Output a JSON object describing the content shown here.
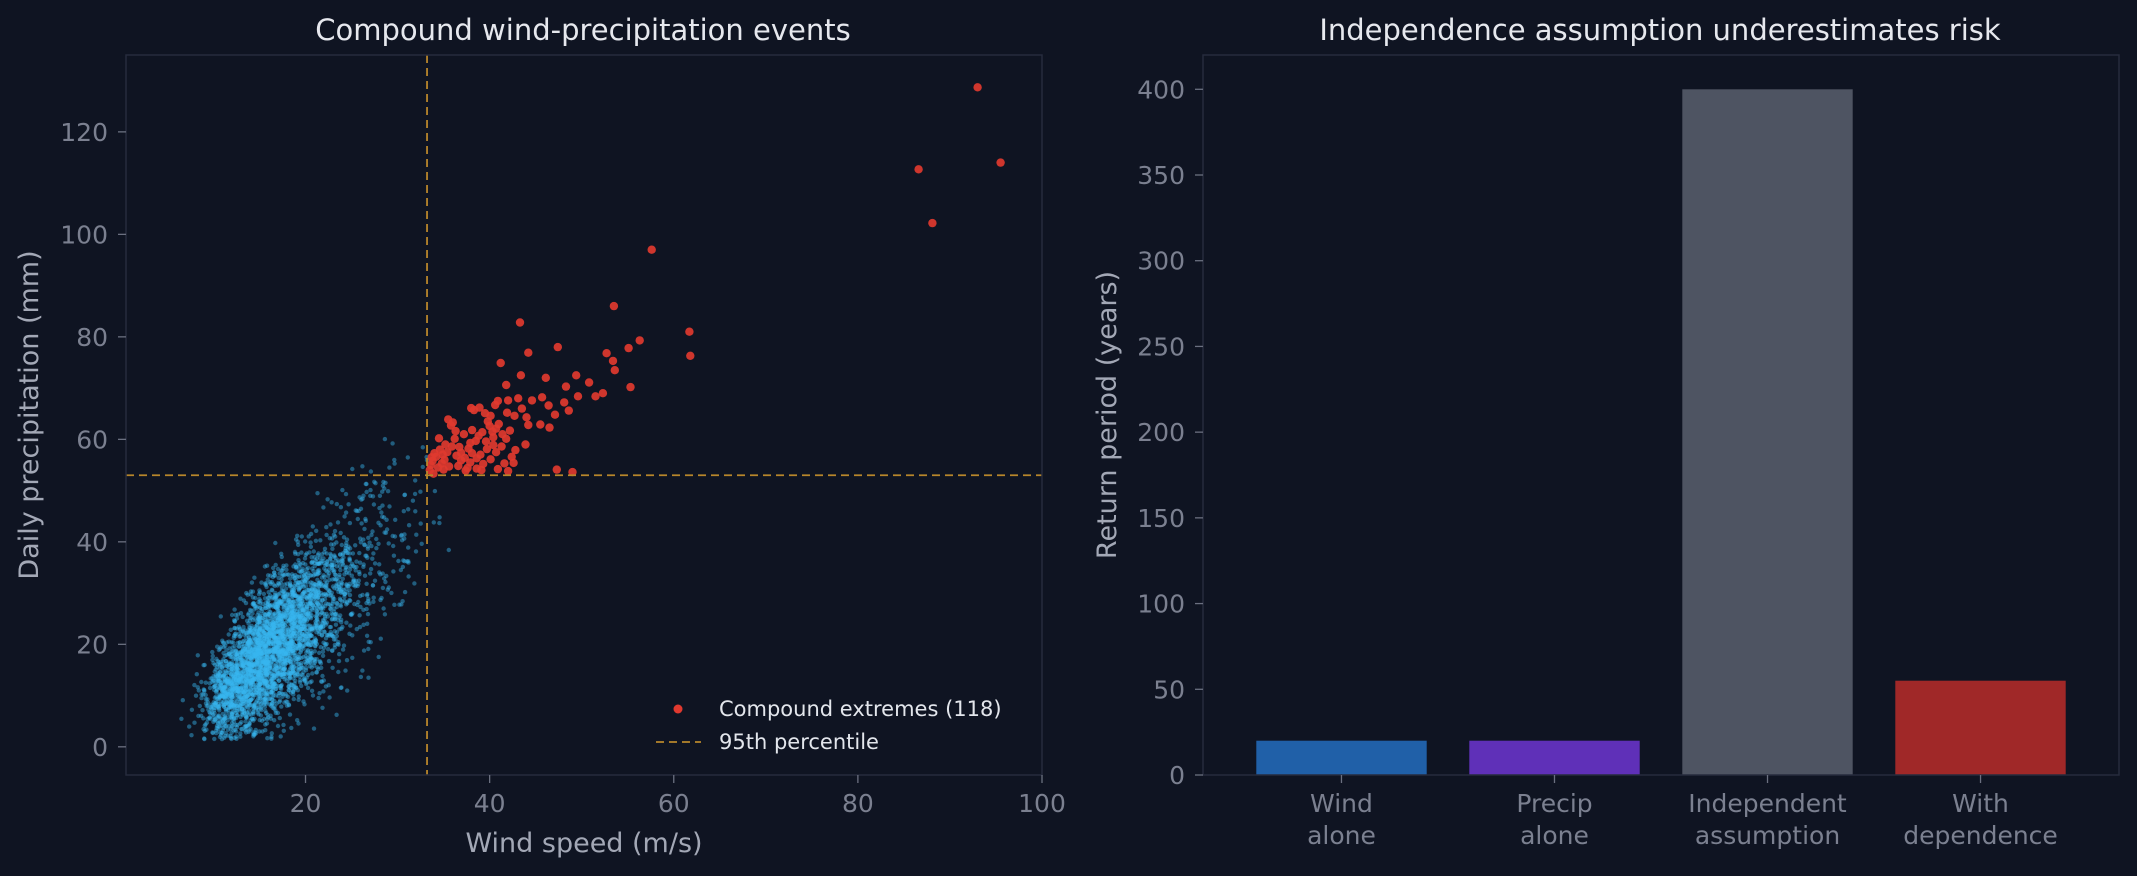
{
  "chart_data": [
    {
      "type": "scatter",
      "title": "Compound wind-precipitation events",
      "xlabel": "Wind speed (m/s)",
      "ylabel": "Daily precipitation (mm)",
      "xlim": [
        0.5,
        100
      ],
      "ylim": [
        -5.5,
        135
      ],
      "xticks": [
        20,
        40,
        60,
        80,
        100
      ],
      "yticks": [
        0,
        20,
        40,
        60,
        80,
        100,
        120
      ],
      "grid": false,
      "legend_position": "lower-right",
      "thresholds": {
        "wind": 33.2,
        "precip": 53
      },
      "colors": {
        "background": "#0f1422",
        "non_compound": "#38b6f0",
        "compound": "#e0392f",
        "threshold": "#b8862b"
      },
      "background_cloud": {
        "n": 3400,
        "seed": 7,
        "wind_median": 16.5,
        "wind_log_sd": 0.27,
        "precip_slope": 1.65,
        "precip_offset": -8,
        "precip_noise_sd": 6.5,
        "note_excluded": "points in the compound-extreme quadrant are not part of this cloud"
      },
      "series": [
        {
          "name": "Compound extremes (118)",
          "marker": "circle",
          "points": [
            [
              93.0,
              128.7
            ],
            [
              95.5,
              114.0
            ],
            [
              86.6,
              112.7
            ],
            [
              88.1,
              102.2
            ],
            [
              57.6,
              97.0
            ],
            [
              61.7,
              81.0
            ],
            [
              61.8,
              76.3
            ],
            [
              56.3,
              79.3
            ],
            [
              55.1,
              77.8
            ],
            [
              53.5,
              86.0
            ],
            [
              43.3,
              82.8
            ],
            [
              47.4,
              78.0
            ],
            [
              44.2,
              76.9
            ],
            [
              41.2,
              74.9
            ],
            [
              52.7,
              76.8
            ],
            [
              53.4,
              75.3
            ],
            [
              53.6,
              73.5
            ],
            [
              55.3,
              70.2
            ],
            [
              52.3,
              69.0
            ],
            [
              50.8,
              71.1
            ],
            [
              51.5,
              68.4
            ],
            [
              49.6,
              68.4
            ],
            [
              49.4,
              72.5
            ],
            [
              48.3,
              70.3
            ],
            [
              46.1,
              72.0
            ],
            [
              43.4,
              72.5
            ],
            [
              45.7,
              68.2
            ],
            [
              48.1,
              67.2
            ],
            [
              48.6,
              65.6
            ],
            [
              47.1,
              64.8
            ],
            [
              46.4,
              66.6
            ],
            [
              44.6,
              67.6
            ],
            [
              43.1,
              68.0
            ],
            [
              42.0,
              67.6
            ],
            [
              40.9,
              67.5
            ],
            [
              41.9,
              65.2
            ],
            [
              42.7,
              64.6
            ],
            [
              40.1,
              64.6
            ],
            [
              39.5,
              65.1
            ],
            [
              38.3,
              65.7
            ],
            [
              38.0,
              66.1
            ],
            [
              38.9,
              66.2
            ],
            [
              40.6,
              66.7
            ],
            [
              43.5,
              66.0
            ],
            [
              46.5,
              62.3
            ],
            [
              44.2,
              62.8
            ],
            [
              42.2,
              61.7
            ],
            [
              41.8,
              60.1
            ],
            [
              41.3,
              58.6
            ],
            [
              40.4,
              60.4
            ],
            [
              40.0,
              62.6
            ],
            [
              39.2,
              61.4
            ],
            [
              38.5,
              59.7
            ],
            [
              37.2,
              61.0
            ],
            [
              36.3,
              61.6
            ],
            [
              35.8,
              62.7
            ],
            [
              35.5,
              63.9
            ],
            [
              36.0,
              63.3
            ],
            [
              37.7,
              58.2
            ],
            [
              39.7,
              58.1
            ],
            [
              40.7,
              57.5
            ],
            [
              42.4,
              56.6
            ],
            [
              41.6,
              55.3
            ],
            [
              40.1,
              56.1
            ],
            [
              38.6,
              56.3
            ],
            [
              37.3,
              56.4
            ],
            [
              36.4,
              56.8
            ],
            [
              35.4,
              57.5
            ],
            [
              34.6,
              58.0
            ],
            [
              34.0,
              57.3
            ],
            [
              33.8,
              55.8
            ],
            [
              34.8,
              55.3
            ],
            [
              35.6,
              54.7
            ],
            [
              36.6,
              54.8
            ],
            [
              37.6,
              54.4
            ],
            [
              38.6,
              54.3
            ],
            [
              39.3,
              55.2
            ],
            [
              33.5,
              54.0
            ],
            [
              33.9,
              53.3
            ],
            [
              34.4,
              54.5
            ],
            [
              35.1,
              56.0
            ],
            [
              36.9,
              55.9
            ],
            [
              38.1,
              57.3
            ],
            [
              39.0,
              57.0
            ],
            [
              37.9,
              59.3
            ],
            [
              36.7,
              58.5
            ],
            [
              35.2,
              59.0
            ],
            [
              34.5,
              60.2
            ],
            [
              33.7,
              56.5
            ],
            [
              40.9,
              54.2
            ],
            [
              42.0,
              53.8
            ],
            [
              47.3,
              54.1
            ],
            [
              49.0,
              53.6
            ],
            [
              41.4,
              61.0
            ],
            [
              41.0,
              63.0
            ],
            [
              39.8,
              63.5
            ],
            [
              38.1,
              61.8
            ],
            [
              36.9,
              57.4
            ],
            [
              35.0,
              54.1
            ],
            [
              37.9,
              55.5
            ],
            [
              39.6,
              59.6
            ],
            [
              40.4,
              58.9
            ],
            [
              42.8,
              57.9
            ],
            [
              43.9,
              59.0
            ],
            [
              45.5,
              62.9
            ],
            [
              41.8,
              70.6
            ],
            [
              44.0,
              64.3
            ],
            [
              40.3,
              61.5
            ],
            [
              34.2,
              56.6
            ],
            [
              36.2,
              60.1
            ],
            [
              37.4,
              53.9
            ],
            [
              35.9,
              58.6
            ],
            [
              39.1,
              54.0
            ],
            [
              42.6,
              55.4
            ],
            [
              40.7,
              62.1
            ],
            [
              38.8,
              60.7
            ],
            [
              33.6,
              55.0
            ],
            [
              34.9,
              57.0
            ]
          ]
        },
        {
          "name": "95th percentile",
          "marker": "dashed-line"
        }
      ]
    },
    {
      "type": "bar",
      "title": "Independence assumption underestimates risk",
      "xlabel": "",
      "ylabel": "Return period (years)",
      "ylim": [
        0,
        420
      ],
      "yticks": [
        0,
        50,
        100,
        150,
        200,
        250,
        300,
        350,
        400
      ],
      "grid": false,
      "categories": [
        [
          "Wind",
          "alone"
        ],
        [
          "Precip",
          "alone"
        ],
        [
          "Independent",
          "assumption"
        ],
        [
          "With",
          "dependence"
        ]
      ],
      "values": [
        20,
        20,
        400,
        55
      ],
      "bar_colors": [
        "#2060a8",
        "#5f30b8",
        "#4e5462",
        "#a02828"
      ]
    }
  ]
}
